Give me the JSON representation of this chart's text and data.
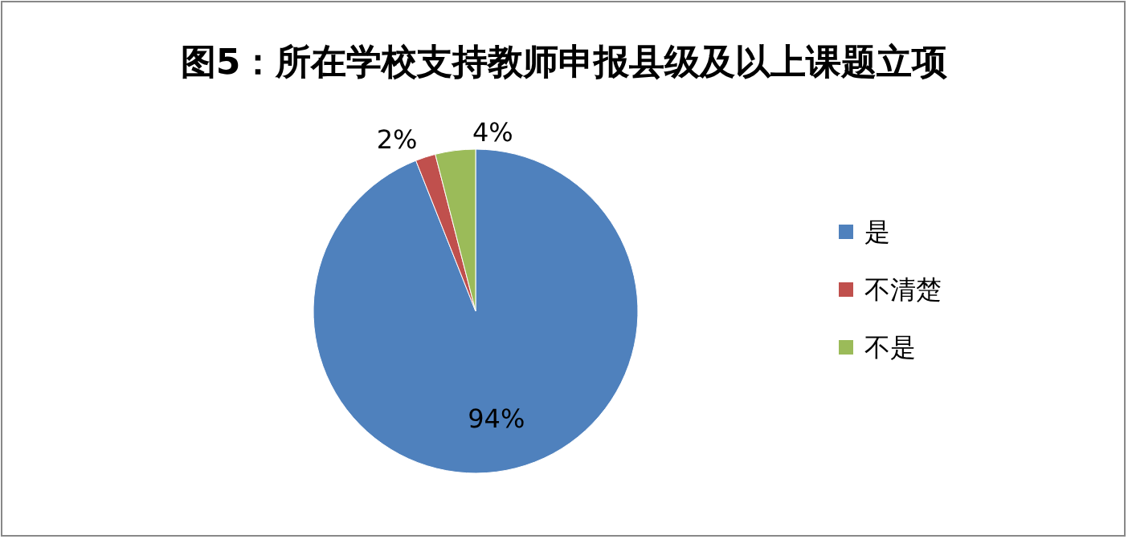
{
  "chart_data": {
    "type": "pie",
    "title": "图5：所在学校支持教师申报县级及以上课题立项",
    "categories": [
      "是",
      "不清楚",
      "不是"
    ],
    "values": [
      94,
      2,
      4
    ],
    "colors": [
      "#4f81bd",
      "#c0504d",
      "#9bbb59"
    ],
    "value_labels": [
      "94%",
      "2%",
      "4%"
    ],
    "legend": "right"
  }
}
